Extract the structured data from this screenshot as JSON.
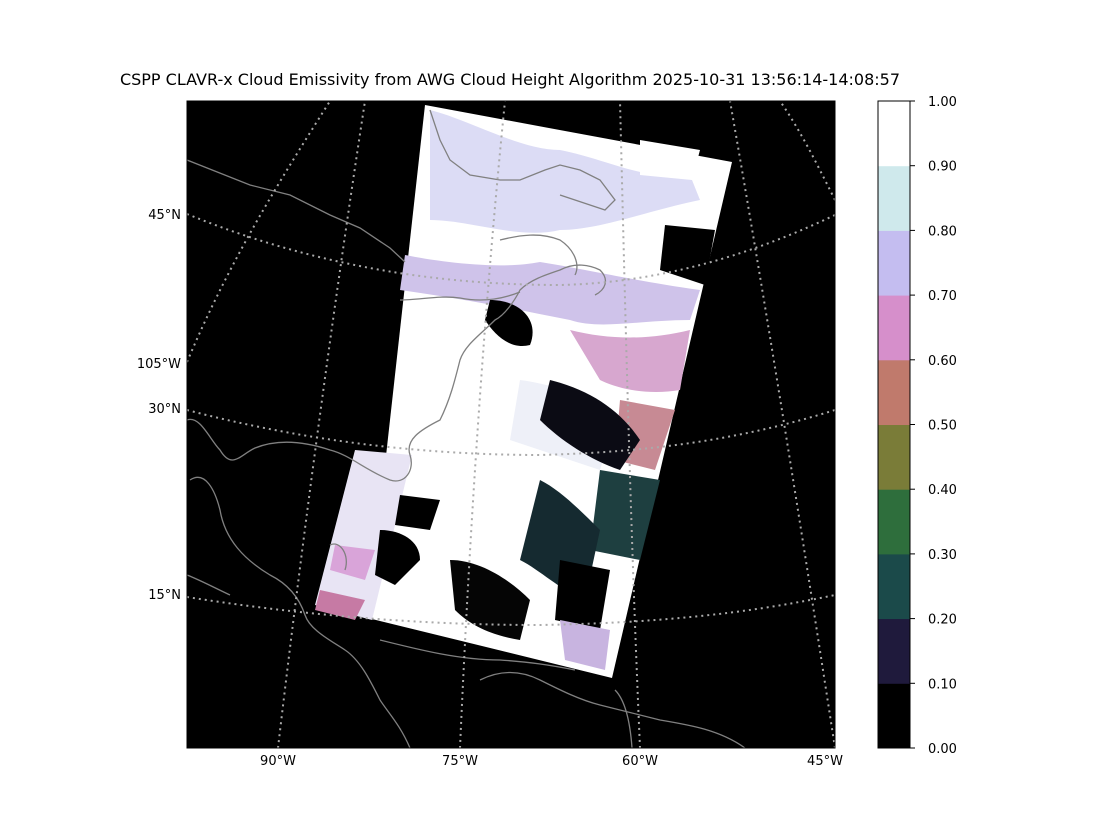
{
  "title": "CSPP CLAVR-x Cloud Emissivity from AWG Cloud Height Algorithm 2025-10-31 13:56:14-14:08:57",
  "lat_labels": [
    {
      "text": "45°N",
      "lat": 45
    },
    {
      "text": "30°N",
      "lat": 30
    },
    {
      "text": "15°N",
      "lat": 15
    }
  ],
  "lon_labels_bottom": [
    {
      "text": "90°W",
      "lon": -90
    },
    {
      "text": "75°W",
      "lon": -75
    },
    {
      "text": "60°W",
      "lon": -60
    },
    {
      "text": "45°W",
      "lon": -45
    }
  ],
  "lon_label_left": {
    "text": "105°W",
    "lon": -105
  },
  "colorbar": {
    "ticks": [
      "0.00",
      "0.10",
      "0.20",
      "0.30",
      "0.40",
      "0.50",
      "0.60",
      "0.70",
      "0.80",
      "0.90",
      "1.00"
    ],
    "colors": [
      "#000000",
      "#1f1a3c",
      "#1b4a4a",
      "#2e6e3c",
      "#7a7c38",
      "#c07a6c",
      "#d68fcb",
      "#c4bdf0",
      "#cfe9ec",
      "#ffffff"
    ]
  },
  "colors": {
    "background": "#000000",
    "coastline": "#808080",
    "gridline": "#aaaaaa"
  }
}
